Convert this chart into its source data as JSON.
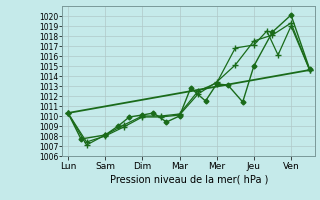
{
  "title": "",
  "xlabel": "Pression niveau de la mer( hPa )",
  "ylabel": "",
  "background_color": "#c5eaea",
  "grid_color": "#b0c8c8",
  "line_color": "#1a6b1a",
  "ylim": [
    1006,
    1021
  ],
  "yticks": [
    1006,
    1007,
    1008,
    1009,
    1010,
    1011,
    1012,
    1013,
    1014,
    1015,
    1016,
    1017,
    1018,
    1019,
    1020
  ],
  "x_labels": [
    "Lun",
    "Sam",
    "Dim",
    "Mar",
    "Mer",
    "Jeu",
    "Ven"
  ],
  "x_positions": [
    0,
    1,
    2,
    3,
    4,
    5,
    6
  ],
  "series": [
    {
      "x": [
        0.0,
        0.35,
        1.0,
        1.35,
        1.65,
        2.0,
        2.3,
        2.65,
        3.0,
        3.3,
        3.7,
        4.0,
        4.3,
        4.7,
        5.0,
        5.5,
        6.0,
        6.5
      ],
      "y": [
        1010.3,
        1007.7,
        1008.1,
        1009.0,
        1009.9,
        1010.1,
        1010.3,
        1009.4,
        1010.0,
        1012.8,
        1011.5,
        1013.2,
        1013.1,
        1011.4,
        1015.0,
        1018.4,
        1020.1,
        1014.7
      ],
      "marker": "D",
      "markersize": 2.5,
      "linewidth": 1.0
    },
    {
      "x": [
        0.0,
        0.5,
        1.0,
        1.5,
        2.0,
        2.5,
        3.0,
        3.5,
        4.0,
        4.5,
        5.0,
        5.35,
        5.65,
        6.0,
        6.5
      ],
      "y": [
        1010.3,
        1007.1,
        1008.1,
        1009.1,
        1010.0,
        1010.0,
        1010.2,
        1012.5,
        1013.3,
        1016.8,
        1017.1,
        1018.5,
        1016.1,
        1019.0,
        1014.6
      ],
      "marker": "+",
      "markersize": 5,
      "linewidth": 0.9
    },
    {
      "x": [
        0.0,
        0.5,
        1.0,
        1.5,
        2.0,
        2.5,
        3.0,
        3.5,
        4.0,
        4.5,
        5.0,
        5.5,
        6.0,
        6.5
      ],
      "y": [
        1010.3,
        1007.4,
        1008.0,
        1008.9,
        1009.9,
        1009.9,
        1010.1,
        1012.2,
        1013.4,
        1015.1,
        1017.5,
        1018.1,
        1019.3,
        1014.6
      ],
      "marker": "+",
      "markersize": 5,
      "linewidth": 0.9
    },
    {
      "x": [
        0.0,
        6.5
      ],
      "y": [
        1010.3,
        1014.6
      ],
      "marker": null,
      "markersize": 0,
      "linewidth": 1.3
    }
  ]
}
